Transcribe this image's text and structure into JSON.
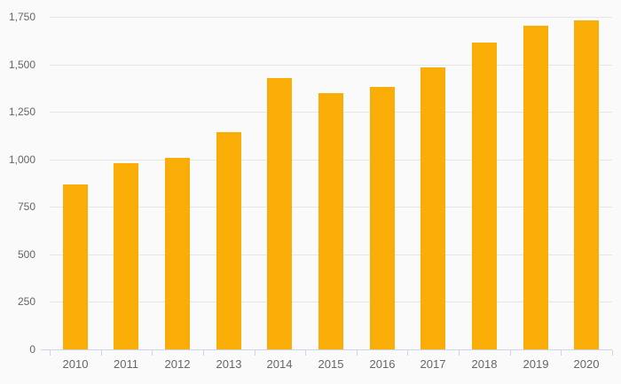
{
  "chart_data": {
    "type": "bar",
    "title": "",
    "xlabel": "",
    "ylabel": "",
    "categories": [
      "2010",
      "2011",
      "2012",
      "2013",
      "2014",
      "2015",
      "2016",
      "2017",
      "2018",
      "2019",
      "2020"
    ],
    "values": [
      870,
      980,
      1010,
      1145,
      1430,
      1350,
      1380,
      1485,
      1615,
      1705,
      1730
    ],
    "ylim": [
      0,
      1750
    ],
    "ytick_interval": 250,
    "ytick_values": [
      0,
      250,
      500,
      750,
      1000,
      1250,
      1500,
      1750
    ],
    "ytick_labels": [
      "0",
      "250",
      "500",
      "750",
      "1,000",
      "1,250",
      "1,500",
      "1,750"
    ],
    "grid": true,
    "legend": false,
    "colors": {
      "bar": "#F9AD06",
      "background": "#fafafa",
      "gridline": "#e6e6e6",
      "axis_line": "#ccd6eb",
      "tick_label": "#666666"
    }
  }
}
